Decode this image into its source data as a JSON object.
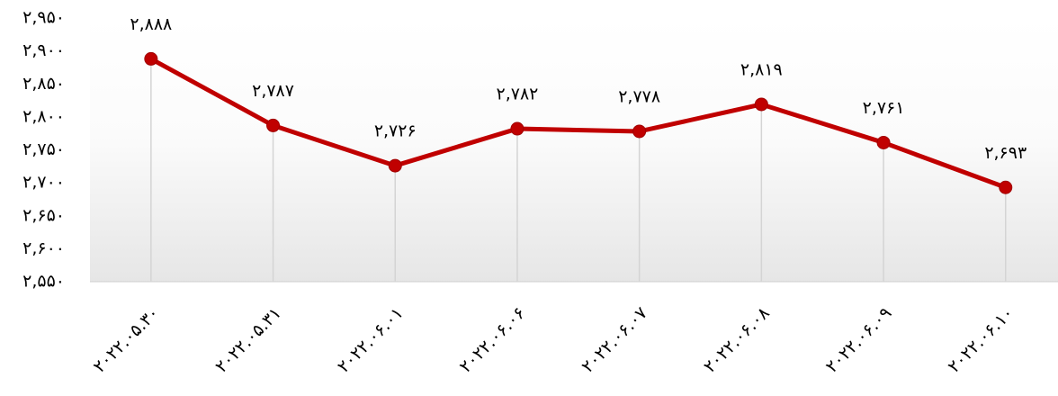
{
  "chart_data": {
    "type": "line",
    "categories": [
      "۲۰۲۲.۰۵.۳۰",
      "۲۰۲۲.۰۵.۳۱",
      "۲۰۲۲.۰۶.۰۱",
      "۲۰۲۲.۰۶.۰۶",
      "۲۰۲۲.۰۶.۰۷",
      "۲۰۲۲.۰۶.۰۸",
      "۲۰۲۲.۰۶.۰۹",
      "۲۰۲۲.۰۶.۱۰"
    ],
    "values": [
      2888,
      2787,
      2726,
      2782,
      2778,
      2819,
      2761,
      2693
    ],
    "value_labels": [
      "۲,۸۸۸",
      "۲,۷۸۷",
      "۲,۷۲۶",
      "۲,۷۸۲",
      "۲,۷۷۸",
      "۲,۸۱۹",
      "۲,۷۶۱",
      "۲,۶۹۳"
    ],
    "color": "#c00000",
    "ylim": [
      2550,
      2950
    ],
    "yticks": [
      {
        "value": 2550,
        "label": "۲,۵۵۰"
      },
      {
        "value": 2600,
        "label": "۲,۶۰۰"
      },
      {
        "value": 2650,
        "label": "۲,۶۵۰"
      },
      {
        "value": 2700,
        "label": "۲,۷۰۰"
      },
      {
        "value": 2750,
        "label": "۲,۷۵۰"
      },
      {
        "value": 2800,
        "label": "۲,۸۰۰"
      },
      {
        "value": 2850,
        "label": "۲,۸۵۰"
      },
      {
        "value": 2900,
        "label": "۲,۹۰۰"
      },
      {
        "value": 2950,
        "label": "۲,۹۵۰"
      }
    ]
  }
}
